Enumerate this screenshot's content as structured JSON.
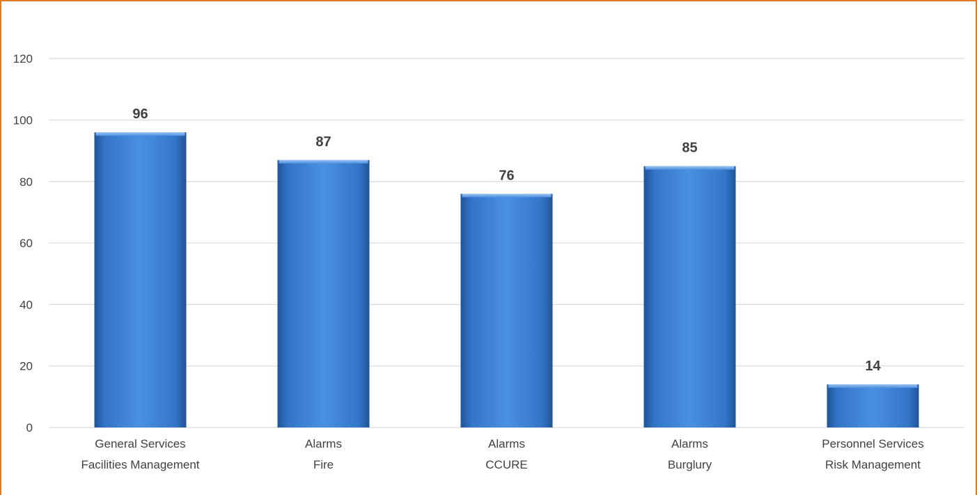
{
  "colors": {
    "frame": "#E07A1F",
    "bar_light": "#4A90E2",
    "bar_mid": "#3475C9",
    "bar_dark": "#1F5497",
    "grid": "#D9D9D9",
    "text": "#404040"
  },
  "chart_data": {
    "type": "bar",
    "categories": [
      [
        "General Services",
        "Facilities Management"
      ],
      [
        "Alarms",
        "Fire"
      ],
      [
        "Alarms",
        "CCURE"
      ],
      [
        "Alarms",
        "Burglury"
      ],
      [
        "Personnel Services",
        "Risk Management"
      ]
    ],
    "values": [
      96,
      87,
      76,
      85,
      14
    ],
    "yticks": [
      0,
      20,
      40,
      60,
      80,
      100,
      120
    ],
    "ylim": [
      0,
      130
    ],
    "grid": true,
    "legend": "none",
    "data_labels": true
  }
}
